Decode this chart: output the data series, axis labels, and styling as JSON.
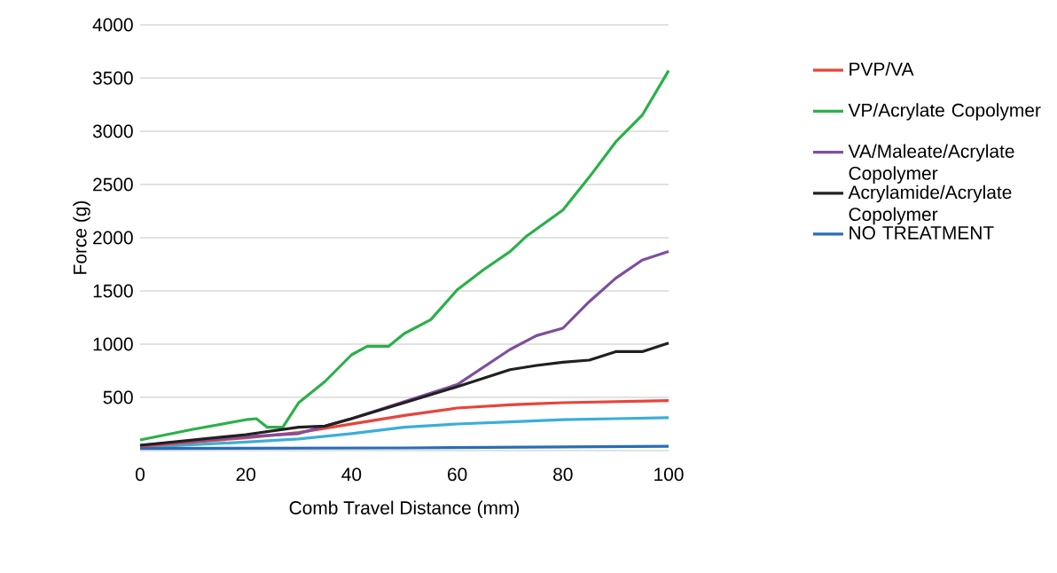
{
  "chart_data": {
    "type": "line",
    "xlabel": "Comb Travel Distance (mm)",
    "ylabel": "Force (g)",
    "xlim": [
      0,
      100
    ],
    "xticks": [
      0,
      20,
      40,
      60,
      80,
      100
    ],
    "ylim": [
      0,
      4000
    ],
    "yticks": [
      {
        "value": 0,
        "label": null
      },
      500,
      1000,
      1500,
      2000,
      2500,
      3000,
      3500,
      4000
    ],
    "grid": "y",
    "legend": "right",
    "marker": "none",
    "line_style": "solid",
    "series": [
      {
        "color": "#3aaed8",
        "x": [
          0,
          10,
          20,
          30,
          40,
          50,
          60,
          70,
          80,
          90,
          100
        ],
        "values": [
          30,
          55,
          80,
          110,
          160,
          220,
          250,
          270,
          290,
          300,
          310
        ]
      },
      {
        "name": "PVP/VA",
        "color": "#e8443a",
        "x": [
          0,
          10,
          20,
          30,
          40,
          50,
          60,
          70,
          75,
          80,
          90,
          100
        ],
        "values": [
          40,
          80,
          120,
          170,
          250,
          330,
          400,
          430,
          440,
          450,
          460,
          470
        ]
      },
      {
        "name": "VP/Acrylate Copolymer",
        "color": "#2bb04a",
        "x": [
          0,
          10,
          20,
          22,
          24,
          27,
          30,
          35,
          40,
          43,
          47,
          50,
          55,
          60,
          65,
          70,
          73,
          80,
          85,
          90,
          95,
          100
        ],
        "values": [
          100,
          200,
          290,
          300,
          220,
          220,
          450,
          650,
          900,
          980,
          980,
          1100,
          1230,
          1510,
          1700,
          1870,
          2010,
          2260,
          2570,
          2900,
          3150,
          3570
        ]
      },
      {
        "name": "VA/Maleate/Acrylate Copolymer",
        "color": "#7e4fa0",
        "x": [
          0,
          10,
          20,
          30,
          40,
          50,
          60,
          70,
          75,
          80,
          85,
          90,
          95,
          100
        ],
        "values": [
          50,
          90,
          130,
          160,
          300,
          460,
          620,
          950,
          1080,
          1150,
          1400,
          1620,
          1790,
          1870
        ]
      },
      {
        "name": "Acrylamide/Acrylate Copolymer",
        "color": "#231f20",
        "x": [
          0,
          10,
          20,
          30,
          35,
          40,
          50,
          60,
          70,
          75,
          80,
          85,
          90,
          95,
          100
        ],
        "values": [
          50,
          100,
          150,
          220,
          230,
          300,
          450,
          600,
          760,
          800,
          830,
          850,
          930,
          930,
          1010
        ]
      },
      {
        "name": "NO TREATMENT",
        "color": "#2a6db5",
        "x": [
          0,
          50,
          100
        ],
        "values": [
          20,
          25,
          40
        ]
      }
    ]
  }
}
